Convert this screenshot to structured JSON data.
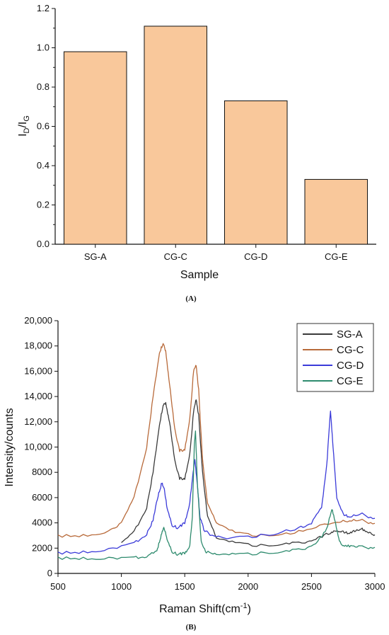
{
  "chart_data": [
    {
      "type": "bar",
      "panel_label": "(A)",
      "title": "",
      "categories": [
        "SG-A",
        "CG-C",
        "CG-D",
        "CG-E"
      ],
      "values": [
        0.98,
        1.11,
        0.73,
        0.33
      ],
      "xlabel": "Sample",
      "ylabel": {
        "main": "I",
        "sub1": "D",
        "slash": "/I",
        "sub2": "G"
      },
      "ylim": [
        0,
        1.2
      ],
      "yticks": [
        "0.0",
        "0.2",
        "0.4",
        "0.6",
        "0.8",
        "1.0",
        "1.2"
      ],
      "bar_color": "#f9c89b",
      "grid": false,
      "legend": "none"
    },
    {
      "type": "line",
      "panel_label": "(B)",
      "title": "",
      "xlabel": "Raman Shift(cm",
      "xlabel_sup": "-1",
      "xlabel_close": ")",
      "ylabel": "Intensity/counts",
      "xlim": [
        500,
        3000
      ],
      "ylim": [
        0,
        20000
      ],
      "xticks": [
        "500",
        "1000",
        "1500",
        "2000",
        "2500",
        "3000"
      ],
      "yticks": [
        "0",
        "2000",
        "4000",
        "6000",
        "8000",
        "10,000",
        "12,000",
        "14,000",
        "16,000",
        "18,000",
        "20,000"
      ],
      "grid": false,
      "legend": "top-right",
      "series": [
        {
          "name": "SG-A",
          "color": "#3a3a3a",
          "x": [
            1000,
            1100,
            1200,
            1250,
            1300,
            1330,
            1350,
            1380,
            1420,
            1460,
            1500,
            1540,
            1570,
            1590,
            1610,
            1640,
            1680,
            1750,
            1900,
            2100,
            2300,
            2450,
            2550,
            2650,
            2700,
            2750,
            2800,
            2850,
            2900,
            2950,
            3000
          ],
          "y": [
            2400,
            3300,
            5200,
            8000,
            11800,
            13300,
            13500,
            12000,
            9000,
            7500,
            7500,
            9500,
            12800,
            13800,
            12500,
            8000,
            4500,
            2800,
            2400,
            2200,
            2300,
            2500,
            2800,
            3200,
            3400,
            3300,
            3200,
            3400,
            3500,
            3300,
            3000
          ]
        },
        {
          "name": "CG-C",
          "color": "#b86a3a",
          "x": [
            500,
            700,
            900,
            1000,
            1100,
            1200,
            1250,
            1300,
            1330,
            1350,
            1380,
            1420,
            1460,
            1500,
            1540,
            1570,
            1590,
            1610,
            1640,
            1680,
            1750,
            1900,
            2100,
            2300,
            2500,
            2700,
            2800,
            2900,
            3000
          ],
          "y": [
            2950,
            3000,
            3300,
            4000,
            6000,
            10000,
            14000,
            17500,
            18200,
            17600,
            15000,
            11500,
            9700,
            9800,
            12300,
            16000,
            16500,
            14500,
            9000,
            5500,
            4000,
            3200,
            3000,
            3100,
            3600,
            4100,
            4200,
            4200,
            3900
          ]
        },
        {
          "name": "CG-D",
          "color": "#3b3bd9",
          "x": [
            500,
            700,
            900,
            1100,
            1200,
            1250,
            1290,
            1320,
            1340,
            1360,
            1400,
            1450,
            1500,
            1540,
            1560,
            1580,
            1600,
            1620,
            1650,
            1700,
            1800,
            2000,
            2200,
            2400,
            2500,
            2580,
            2620,
            2650,
            2670,
            2700,
            2750,
            2800,
            2900,
            3000
          ],
          "y": [
            1600,
            1700,
            1900,
            2400,
            3100,
            4200,
            6200,
            7200,
            6600,
            5200,
            3800,
            3600,
            4000,
            5600,
            7500,
            9000,
            7000,
            4500,
            3500,
            3000,
            2800,
            2900,
            3100,
            3600,
            4000,
            5200,
            8500,
            12900,
            10000,
            6000,
            4700,
            4500,
            4700,
            4300
          ]
        },
        {
          "name": "CG-E",
          "color": "#2e8b6e",
          "x": [
            500,
            700,
            900,
            1100,
            1200,
            1280,
            1310,
            1335,
            1360,
            1400,
            1450,
            1500,
            1540,
            1560,
            1575,
            1585,
            1600,
            1630,
            1670,
            1750,
            1900,
            2100,
            2300,
            2450,
            2550,
            2620,
            2660,
            2690,
            2720,
            2760,
            2820,
            2900,
            3000
          ],
          "y": [
            1200,
            1200,
            1200,
            1250,
            1350,
            1800,
            2900,
            3700,
            2700,
            1700,
            1500,
            1600,
            2200,
            4500,
            10000,
            11300,
            7000,
            2500,
            1700,
            1500,
            1500,
            1600,
            1700,
            2000,
            2500,
            3500,
            5100,
            4000,
            2500,
            2200,
            2100,
            2100,
            2000
          ]
        }
      ]
    }
  ]
}
